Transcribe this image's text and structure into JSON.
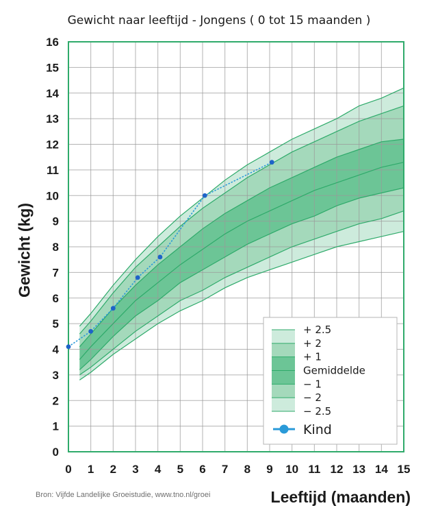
{
  "chart_data": {
    "type": "line",
    "title": "Gewicht naar leeftijd - Jongens ( 0 tot 15 maanden )",
    "xlabel": "Leeftijd (maanden)",
    "ylabel": "Gewicht (kg)",
    "xlim": [
      0,
      15
    ],
    "ylim": [
      0,
      16
    ],
    "x_ticks": [
      "0",
      "1",
      "2",
      "3",
      "4",
      "5",
      "6",
      "7",
      "8",
      "9",
      "10",
      "11",
      "12",
      "13",
      "14",
      "15"
    ],
    "y_ticks": [
      "0",
      "1",
      "2",
      "3",
      "4",
      "5",
      "6",
      "7",
      "8",
      "9",
      "10",
      "11",
      "12",
      "13",
      "14",
      "15",
      "16"
    ],
    "grid": true,
    "reference_x": [
      0.5,
      1,
      2,
      3,
      4,
      5,
      6,
      7,
      8,
      9,
      10,
      11,
      12,
      13,
      14,
      15
    ],
    "reference_series": [
      {
        "name": "+ 2.5",
        "values": [
          4.9,
          5.4,
          6.5,
          7.5,
          8.4,
          9.2,
          9.9,
          10.6,
          11.2,
          11.7,
          12.2,
          12.6,
          13.0,
          13.5,
          13.8,
          14.2
        ]
      },
      {
        "name": "+ 2",
        "values": [
          4.6,
          5.1,
          6.2,
          7.2,
          8.0,
          8.8,
          9.5,
          10.1,
          10.7,
          11.2,
          11.7,
          12.1,
          12.5,
          12.9,
          13.2,
          13.5
        ]
      },
      {
        "name": "+ 1",
        "values": [
          4.1,
          4.6,
          5.6,
          6.5,
          7.3,
          8.0,
          8.7,
          9.3,
          9.8,
          10.3,
          10.7,
          11.1,
          11.5,
          11.8,
          12.1,
          12.2
        ]
      },
      {
        "name": "Gemiddelde",
        "values": [
          3.6,
          4.1,
          5.0,
          5.9,
          6.6,
          7.3,
          7.9,
          8.5,
          9.0,
          9.4,
          9.8,
          10.2,
          10.5,
          10.8,
          11.1,
          11.3
        ]
      },
      {
        "name": "− 1",
        "values": [
          3.2,
          3.6,
          4.5,
          5.3,
          5.9,
          6.6,
          7.1,
          7.6,
          8.1,
          8.5,
          8.9,
          9.2,
          9.6,
          9.9,
          10.1,
          10.3
        ]
      },
      {
        "name": "− 2",
        "values": [
          3.0,
          3.3,
          4.0,
          4.7,
          5.3,
          5.9,
          6.3,
          6.8,
          7.2,
          7.6,
          8.0,
          8.3,
          8.6,
          8.9,
          9.1,
          9.4
        ]
      },
      {
        "name": "− 2.5",
        "values": [
          2.8,
          3.1,
          3.8,
          4.4,
          5.0,
          5.5,
          5.9,
          6.4,
          6.8,
          7.1,
          7.4,
          7.7,
          8.0,
          8.2,
          8.4,
          8.6
        ]
      }
    ],
    "series": [
      {
        "name": "Kind",
        "x": [
          0,
          1,
          2,
          3.1,
          4.1,
          6.1,
          9.1
        ],
        "values": [
          4.1,
          4.7,
          5.6,
          6.8,
          7.6,
          10.0,
          11.3
        ],
        "color": "#1e63c8"
      }
    ],
    "legend": {
      "position": "bottom-right",
      "entries": [
        "+ 2.5",
        "+ 2",
        "+ 1",
        "Gemiddelde",
        "− 1",
        "− 2",
        "− 2.5",
        "Kind"
      ]
    }
  },
  "source": "Bron: Vijfde Landelijke Groeistudie, www.tno.nl/groei",
  "colors": {
    "band_outer": "#cdebdc",
    "band_middle": "#a4d9bb",
    "band_inner": "#6cc596",
    "band_line": "#2eaa6a",
    "frame": "#2eaa6a",
    "grid": "#9a9a9a",
    "kind_line": "#2a9ad8",
    "kind_point": "#1e63c8"
  }
}
